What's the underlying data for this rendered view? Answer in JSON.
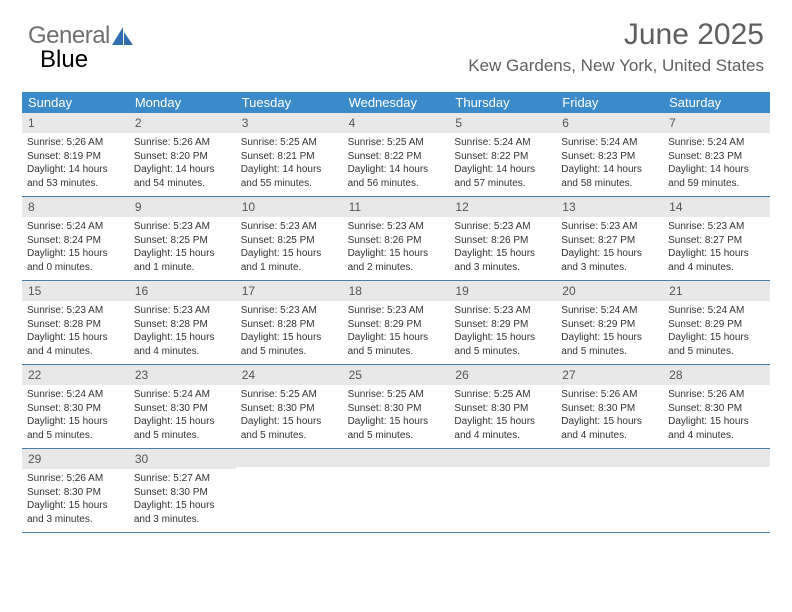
{
  "logo": {
    "part1": "General",
    "part2": "Blue"
  },
  "title": "June 2025",
  "location": "Kew Gardens, New York, United States",
  "colors": {
    "header_bg": "#3b8bca",
    "header_text": "#ffffff",
    "date_bg": "#e8e8e8",
    "border": "#4a7fa8",
    "title_color": "#5f5f5f",
    "text_color": "#333333"
  },
  "calendar": {
    "type": "table",
    "columns": [
      "Sunday",
      "Monday",
      "Tuesday",
      "Wednesday",
      "Thursday",
      "Friday",
      "Saturday"
    ],
    "cell_fontsize": 10,
    "header_fontsize": 13,
    "weeks": [
      [
        {
          "date": "1",
          "sunrise": "5:26 AM",
          "sunset": "8:19 PM",
          "daylight": "14 hours and 53 minutes."
        },
        {
          "date": "2",
          "sunrise": "5:26 AM",
          "sunset": "8:20 PM",
          "daylight": "14 hours and 54 minutes."
        },
        {
          "date": "3",
          "sunrise": "5:25 AM",
          "sunset": "8:21 PM",
          "daylight": "14 hours and 55 minutes."
        },
        {
          "date": "4",
          "sunrise": "5:25 AM",
          "sunset": "8:22 PM",
          "daylight": "14 hours and 56 minutes."
        },
        {
          "date": "5",
          "sunrise": "5:24 AM",
          "sunset": "8:22 PM",
          "daylight": "14 hours and 57 minutes."
        },
        {
          "date": "6",
          "sunrise": "5:24 AM",
          "sunset": "8:23 PM",
          "daylight": "14 hours and 58 minutes."
        },
        {
          "date": "7",
          "sunrise": "5:24 AM",
          "sunset": "8:23 PM",
          "daylight": "14 hours and 59 minutes."
        }
      ],
      [
        {
          "date": "8",
          "sunrise": "5:24 AM",
          "sunset": "8:24 PM",
          "daylight": "15 hours and 0 minutes."
        },
        {
          "date": "9",
          "sunrise": "5:23 AM",
          "sunset": "8:25 PM",
          "daylight": "15 hours and 1 minute."
        },
        {
          "date": "10",
          "sunrise": "5:23 AM",
          "sunset": "8:25 PM",
          "daylight": "15 hours and 1 minute."
        },
        {
          "date": "11",
          "sunrise": "5:23 AM",
          "sunset": "8:26 PM",
          "daylight": "15 hours and 2 minutes."
        },
        {
          "date": "12",
          "sunrise": "5:23 AM",
          "sunset": "8:26 PM",
          "daylight": "15 hours and 3 minutes."
        },
        {
          "date": "13",
          "sunrise": "5:23 AM",
          "sunset": "8:27 PM",
          "daylight": "15 hours and 3 minutes."
        },
        {
          "date": "14",
          "sunrise": "5:23 AM",
          "sunset": "8:27 PM",
          "daylight": "15 hours and 4 minutes."
        }
      ],
      [
        {
          "date": "15",
          "sunrise": "5:23 AM",
          "sunset": "8:28 PM",
          "daylight": "15 hours and 4 minutes."
        },
        {
          "date": "16",
          "sunrise": "5:23 AM",
          "sunset": "8:28 PM",
          "daylight": "15 hours and 4 minutes."
        },
        {
          "date": "17",
          "sunrise": "5:23 AM",
          "sunset": "8:28 PM",
          "daylight": "15 hours and 5 minutes."
        },
        {
          "date": "18",
          "sunrise": "5:23 AM",
          "sunset": "8:29 PM",
          "daylight": "15 hours and 5 minutes."
        },
        {
          "date": "19",
          "sunrise": "5:23 AM",
          "sunset": "8:29 PM",
          "daylight": "15 hours and 5 minutes."
        },
        {
          "date": "20",
          "sunrise": "5:24 AM",
          "sunset": "8:29 PM",
          "daylight": "15 hours and 5 minutes."
        },
        {
          "date": "21",
          "sunrise": "5:24 AM",
          "sunset": "8:29 PM",
          "daylight": "15 hours and 5 minutes."
        }
      ],
      [
        {
          "date": "22",
          "sunrise": "5:24 AM",
          "sunset": "8:30 PM",
          "daylight": "15 hours and 5 minutes."
        },
        {
          "date": "23",
          "sunrise": "5:24 AM",
          "sunset": "8:30 PM",
          "daylight": "15 hours and 5 minutes."
        },
        {
          "date": "24",
          "sunrise": "5:25 AM",
          "sunset": "8:30 PM",
          "daylight": "15 hours and 5 minutes."
        },
        {
          "date": "25",
          "sunrise": "5:25 AM",
          "sunset": "8:30 PM",
          "daylight": "15 hours and 5 minutes."
        },
        {
          "date": "26",
          "sunrise": "5:25 AM",
          "sunset": "8:30 PM",
          "daylight": "15 hours and 4 minutes."
        },
        {
          "date": "27",
          "sunrise": "5:26 AM",
          "sunset": "8:30 PM",
          "daylight": "15 hours and 4 minutes."
        },
        {
          "date": "28",
          "sunrise": "5:26 AM",
          "sunset": "8:30 PM",
          "daylight": "15 hours and 4 minutes."
        }
      ],
      [
        {
          "date": "29",
          "sunrise": "5:26 AM",
          "sunset": "8:30 PM",
          "daylight": "15 hours and 3 minutes."
        },
        {
          "date": "30",
          "sunrise": "5:27 AM",
          "sunset": "8:30 PM",
          "daylight": "15 hours and 3 minutes."
        },
        {
          "date": ""
        },
        {
          "date": ""
        },
        {
          "date": ""
        },
        {
          "date": ""
        },
        {
          "date": ""
        }
      ]
    ]
  },
  "labels": {
    "sunrise": "Sunrise: ",
    "sunset": "Sunset: ",
    "daylight": "Daylight: "
  }
}
